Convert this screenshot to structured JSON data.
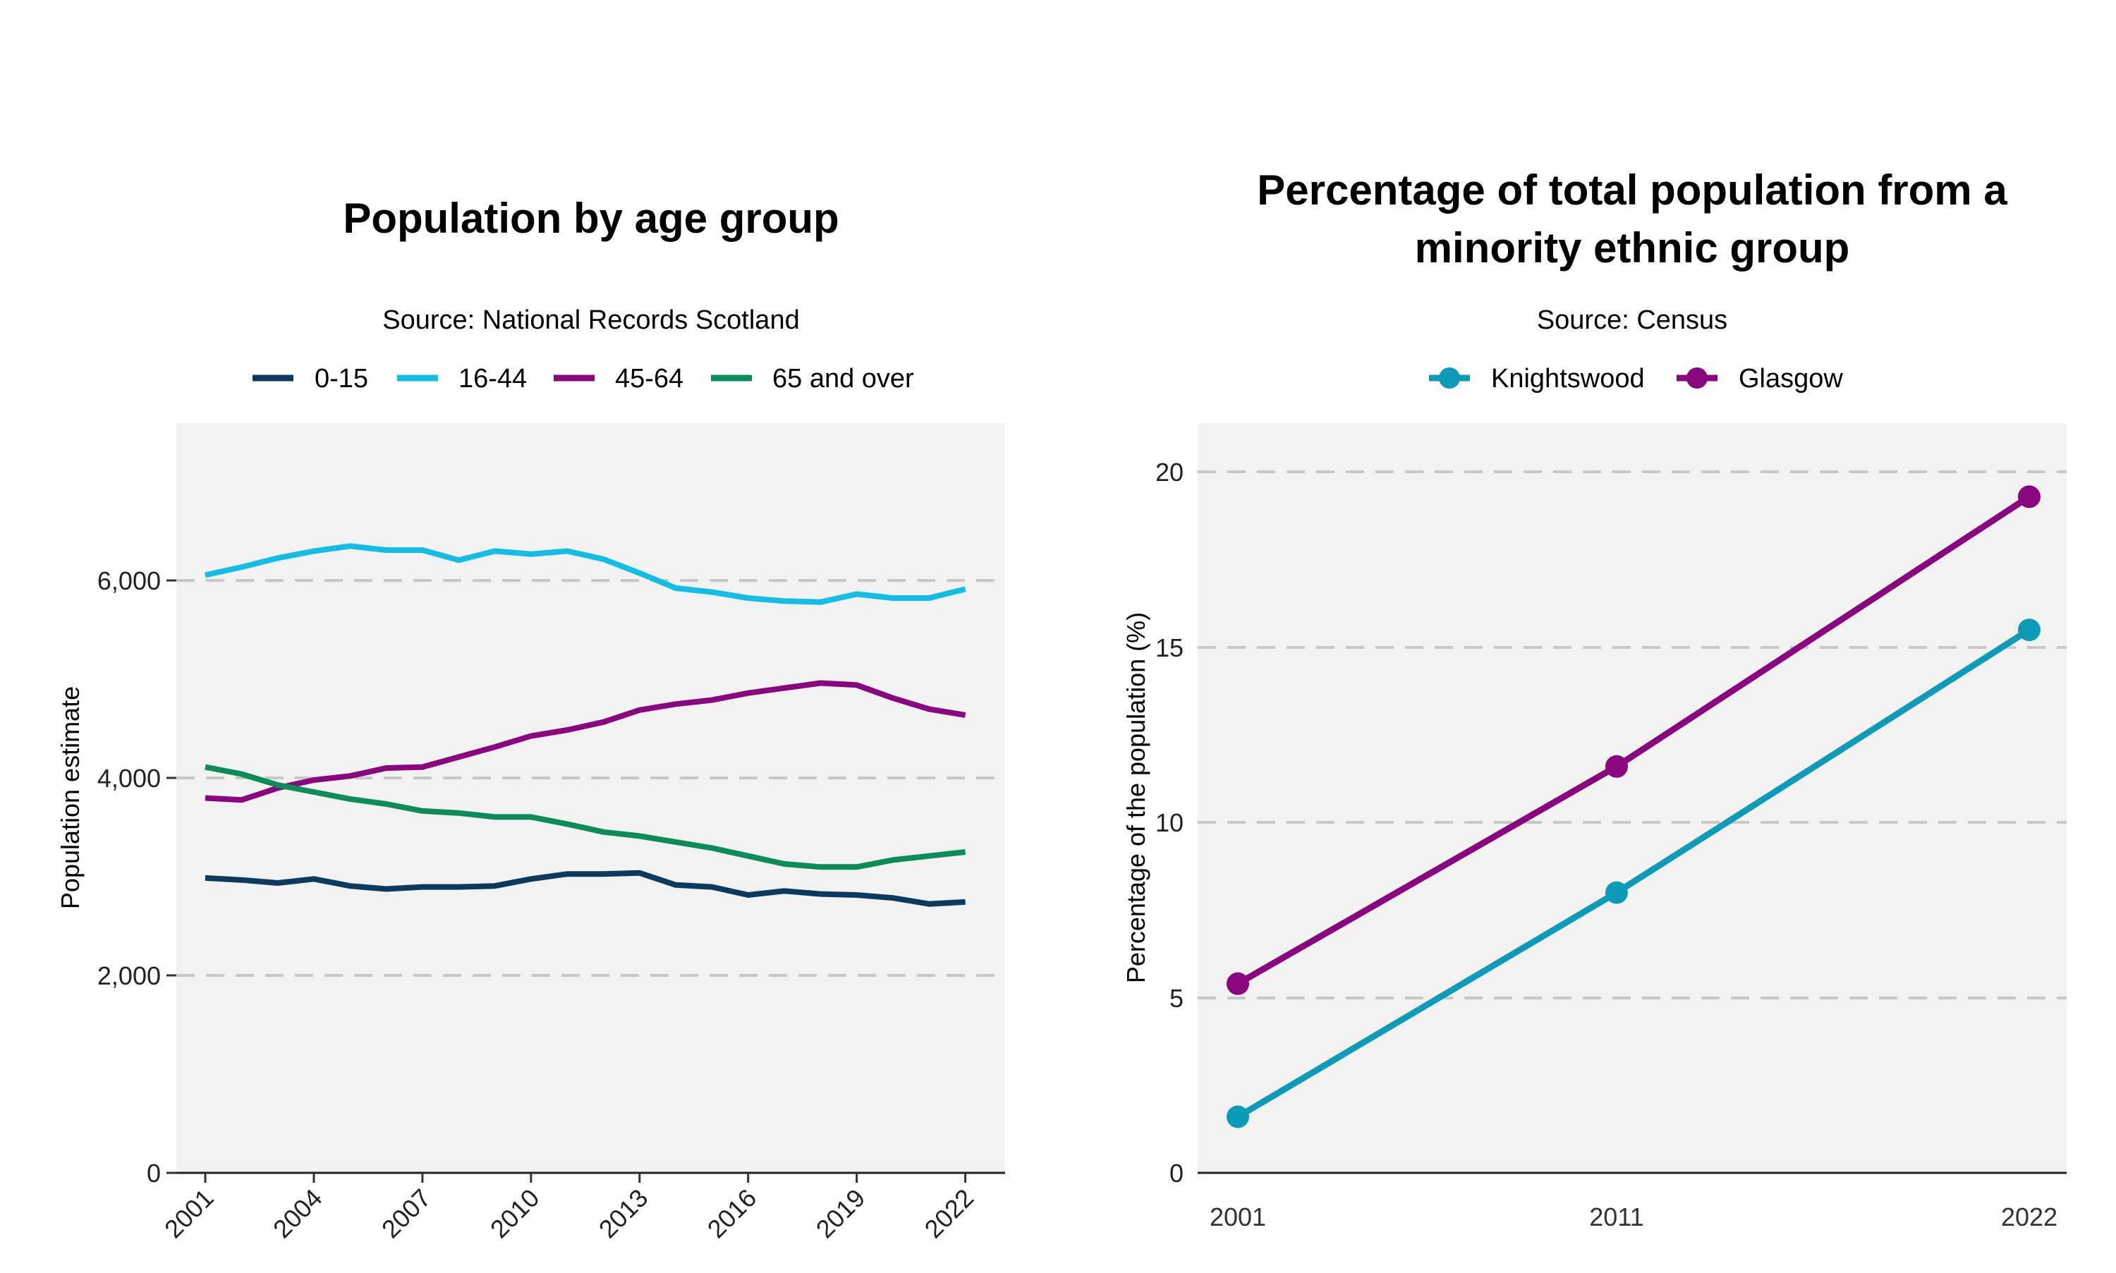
{
  "chart_data": [
    {
      "type": "line",
      "title": "Population by age group",
      "subtitle": "Source: National Records Scotland",
      "xlabel": "",
      "ylabel": "Population estimate",
      "x": [
        2001,
        2002,
        2003,
        2004,
        2005,
        2006,
        2007,
        2008,
        2009,
        2010,
        2011,
        2012,
        2013,
        2014,
        2015,
        2016,
        2017,
        2018,
        2019,
        2020,
        2021,
        2022
      ],
      "xticks": [
        "2001",
        "2004",
        "2007",
        "2010",
        "2013",
        "2016",
        "2019",
        "2022"
      ],
      "yticks": [
        "0",
        "2,000",
        "4,000",
        "6,000"
      ],
      "ylim": [
        0,
        7500
      ],
      "xlim": [
        2000.2,
        2023.1
      ],
      "grid": "horizontal dashed",
      "legend": "top",
      "series": [
        {
          "name": "0-15",
          "color": "#0b3a5e",
          "values": [
            2950,
            2930,
            2900,
            2940,
            2870,
            2840,
            2860,
            2860,
            2870,
            2940,
            2990,
            2990,
            3000,
            2880,
            2860,
            2780,
            2820,
            2790,
            2780,
            2750,
            2690,
            2710
          ]
        },
        {
          "name": "16-44",
          "color": "#13bde3",
          "values": [
            5980,
            6060,
            6150,
            6220,
            6270,
            6230,
            6230,
            6130,
            6220,
            6190,
            6220,
            6140,
            6000,
            5850,
            5810,
            5750,
            5720,
            5710,
            5790,
            5750,
            5750,
            5840
          ]
        },
        {
          "name": "45-64",
          "color": "#8a067f",
          "values": [
            3750,
            3730,
            3850,
            3930,
            3970,
            4050,
            4060,
            4160,
            4260,
            4370,
            4430,
            4510,
            4630,
            4690,
            4730,
            4800,
            4850,
            4900,
            4880,
            4750,
            4640,
            4580
          ]
        },
        {
          "name": "65 and over",
          "color": "#0b8c5a",
          "values": [
            4060,
            3990,
            3880,
            3810,
            3740,
            3690,
            3620,
            3600,
            3560,
            3560,
            3490,
            3410,
            3370,
            3310,
            3250,
            3170,
            3090,
            3060,
            3060,
            3130,
            3170,
            3210
          ]
        }
      ]
    },
    {
      "type": "line",
      "title_lines": [
        "Percentage of total population from a",
        "minority ethnic group"
      ],
      "subtitle": "Source: Census",
      "xlabel": "",
      "ylabel": "Percentage of the population (%)",
      "categories": [
        "2001",
        "2011",
        "2022"
      ],
      "yticks": [
        "0",
        "5",
        "10",
        "15",
        "20"
      ],
      "ylim": [
        0,
        21.4
      ],
      "grid": "horizontal dashed",
      "legend": "top",
      "series": [
        {
          "name": "Knightswood",
          "color": "#0e9bb8",
          "values": [
            1.6,
            8.0,
            15.5
          ]
        },
        {
          "name": "Glasgow",
          "color": "#8a067f",
          "values": [
            5.4,
            11.6,
            19.3
          ]
        }
      ]
    }
  ]
}
